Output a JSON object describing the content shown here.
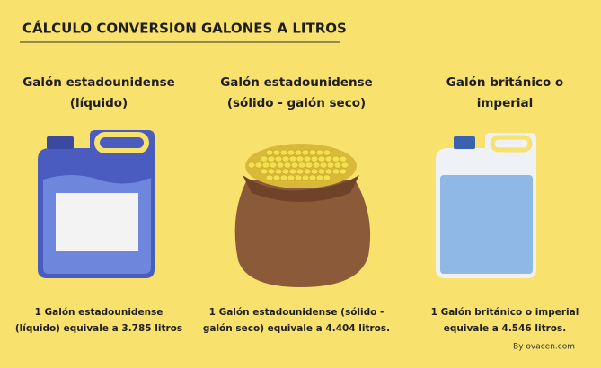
{
  "title": "CÁLCULO CONVERSION GALONES A LITROS",
  "columns": [
    {
      "heading": [
        "Galón estadounidense",
        "(líquido)"
      ],
      "caption": [
        "1 Galón estadounidense",
        "(líquido) equivale a 3.785 litros"
      ]
    },
    {
      "heading": [
        "Galón estadounidense",
        "(sólido - galón seco)"
      ],
      "caption": [
        "1 Galón estadounidense (sólido -",
        "galón seco) equivale a 4.404 litros."
      ]
    },
    {
      "heading": [
        "Galón británico o",
        "imperial"
      ],
      "caption": [
        "1 Galón británico o imperial",
        "equivale a 4.546 litros."
      ]
    }
  ],
  "credit": "By ovacen.com"
}
